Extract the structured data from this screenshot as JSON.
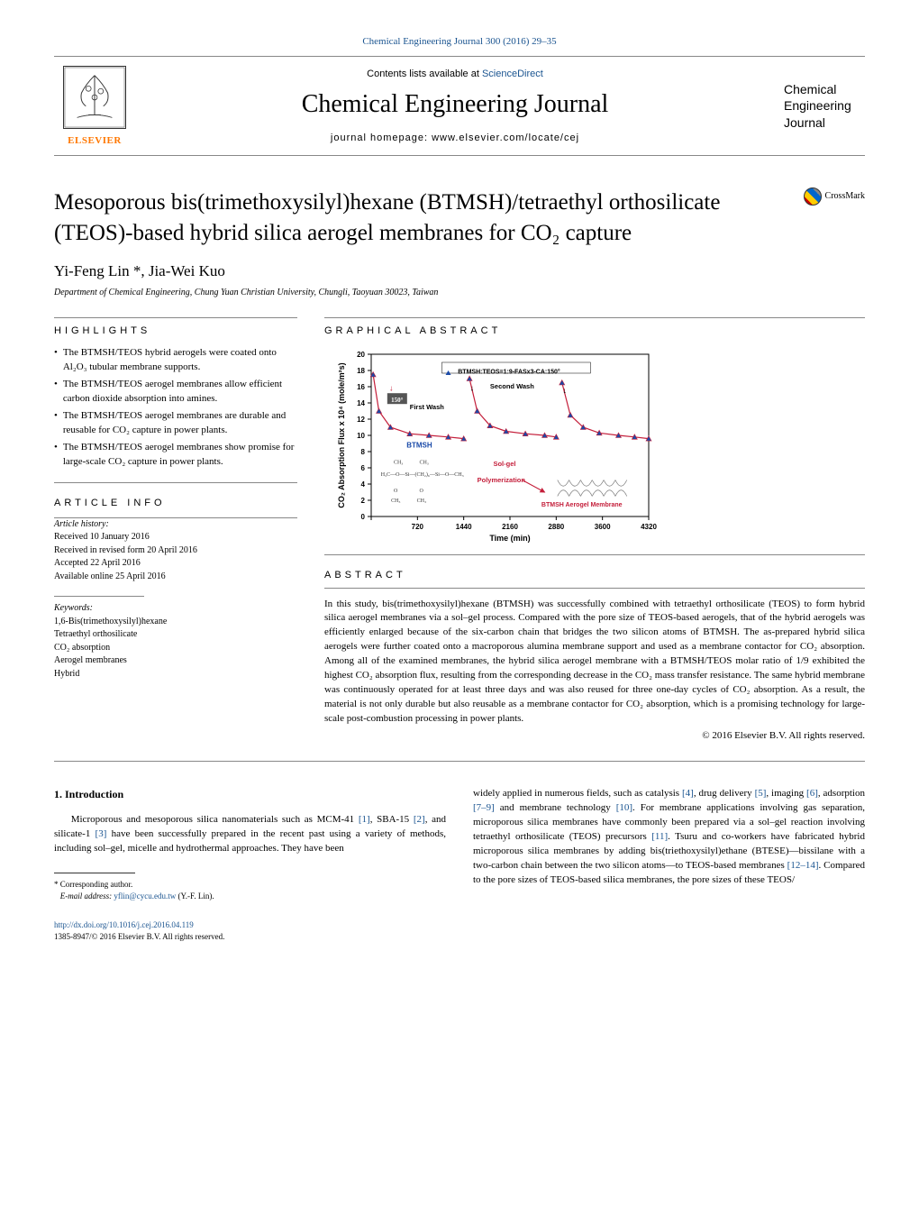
{
  "top_citation": "Chemical Engineering Journal 300 (2016) 29–35",
  "header": {
    "contents_text": "Contents lists available at ",
    "sciencedirect": "ScienceDirect",
    "journal_title": "Chemical Engineering Journal",
    "homepage_label": "journal homepage: ",
    "homepage_url": "www.elsevier.com/locate/cej",
    "elsevier": "ELSEVIER",
    "cover_text": "Chemical Engineering Journal"
  },
  "crossmark": "CrossMark",
  "title": "Mesoporous bis(trimethoxysilyl)hexane (BTMSH)/tetraethyl orthosilicate (TEOS)-based hybrid silica aerogel membranes for CO₂ capture",
  "authors": "Yi-Feng Lin *, Jia-Wei Kuo",
  "affiliation": "Department of Chemical Engineering, Chung Yuan Christian University, Chungli, Taoyuan 30023, Taiwan",
  "sections": {
    "highlights_label": "HIGHLIGHTS",
    "graphical_label": "GRAPHICAL ABSTRACT",
    "article_info_label": "ARTICLE INFO",
    "abstract_label": "ABSTRACT"
  },
  "highlights": [
    "The BTMSH/TEOS hybrid aerogels were coated onto Al₂O₃ tubular membrane supports.",
    "The BTMSH/TEOS aerogel membranes allow efficient carbon dioxide absorption into amines.",
    "The BTMSH/TEOS aerogel membranes are durable and reusable for CO₂ capture in power plants.",
    "The BTMSH/TEOS aerogel membranes show promise for large-scale CO₂ capture in power plants."
  ],
  "article_info": {
    "history_label": "Article history:",
    "received": "Received 10 January 2016",
    "revised": "Received in revised form 20 April 2016",
    "accepted": "Accepted 22 April 2016",
    "online": "Available online 25 April 2016",
    "keywords_label": "Keywords:",
    "keywords": [
      "1,6-Bis(trimethoxysilyl)hexane",
      "Tetraethyl orthosilicate",
      "CO₂ absorption",
      "Aerogel membranes",
      "Hybrid"
    ]
  },
  "abstract": "In this study, bis(trimethoxysilyl)hexane (BTMSH) was successfully combined with tetraethyl orthosilicate (TEOS) to form hybrid silica aerogel membranes via a sol–gel process. Compared with the pore size of TEOS-based aerogels, that of the hybrid aerogels was efficiently enlarged because of the six-carbon chain that bridges the two silicon atoms of BTMSH. The as-prepared hybrid silica aerogels were further coated onto a macroporous alumina membrane support and used as a membrane contactor for CO₂ absorption. Among all of the examined membranes, the hybrid silica aerogel membrane with a BTMSH/TEOS molar ratio of 1/9 exhibited the highest CO₂ absorption flux, resulting from the corresponding decrease in the CO₂ mass transfer resistance. The same hybrid membrane was continuously operated for at least three days and was also reused for three one-day cycles of CO₂ absorption. As a result, the material is not only durable but also reusable as a membrane contactor for CO₂ absorption, which is a promising technology for large-scale post-combustion processing in power plants.",
  "copyright": "© 2016 Elsevier B.V. All rights reserved.",
  "intro": {
    "heading": "1. Introduction",
    "para_left": "Microporous and mesoporous silica nanomaterials such as MCM-41 [1], SBA-15 [2], and silicate-1 [3] have been successfully prepared in the recent past using a variety of methods, including sol–gel, micelle and hydrothermal approaches. They have been",
    "para_right": "widely applied in numerous fields, such as catalysis [4], drug delivery [5], imaging [6], adsorption [7–9] and membrane technology [10]. For membrane applications involving gas separation, microporous silica membranes have commonly been prepared via a sol–gel reaction involving tetraethyl orthosilicate (TEOS) precursors [11]. Tsuru and co-workers have fabricated hybrid microporous silica membranes by adding bis(triethoxysilyl)ethane (BTESE)—bissilane with a two-carbon chain between the two silicon atoms—to TEOS-based membranes [12–14]. Compared to the pore sizes of TEOS-based silica membranes, the pore sizes of these TEOS/"
  },
  "footnote": {
    "corresponding": "* Corresponding author.",
    "email_label": "E-mail address: ",
    "email": "yflin@cycu.edu.tw",
    "email_name": " (Y.-F. Lin)."
  },
  "footer": {
    "doi": "http://dx.doi.org/10.1016/j.cej.2016.04.119",
    "issn": "1385-8947/© 2016 Elsevier B.V. All rights reserved."
  },
  "chart": {
    "type": "line-scatter",
    "y_label": "CO₂ Absorption Flux x 10⁴ (mole/m²s)",
    "x_label": "Time (min)",
    "xlim": [
      0,
      4320
    ],
    "ylim": [
      0,
      20
    ],
    "xticks": [
      0,
      720,
      1440,
      2160,
      2880,
      3600,
      4320
    ],
    "yticks": [
      0,
      2,
      4,
      6,
      8,
      10,
      12,
      14,
      16,
      18,
      20
    ],
    "legend": "BTMSH:TEOS=1:9-FASx3-CA:150°",
    "annotations": {
      "angle": "150°",
      "first_wash": "First Wash",
      "second_wash": "Second Wash",
      "btmsh": "BTMSH",
      "solgel": "Sol-gel",
      "polymerization": "Polymerization",
      "membrane": "BTMSH Aerogel Membrane"
    },
    "series_color": "#c41e3a",
    "marker_fill": "#1a4aa8",
    "text_colors": {
      "btmsh": "#1a4aa8",
      "solgel": "#c41e3a",
      "polymerization": "#c41e3a",
      "membrane": "#c41e3a"
    },
    "data": [
      {
        "x": 30,
        "y": 17.5
      },
      {
        "x": 120,
        "y": 13
      },
      {
        "x": 300,
        "y": 11
      },
      {
        "x": 600,
        "y": 10.2
      },
      {
        "x": 900,
        "y": 10
      },
      {
        "x": 1200,
        "y": 9.8
      },
      {
        "x": 1440,
        "y": 9.6
      },
      {
        "x": 1530,
        "y": 17
      },
      {
        "x": 1650,
        "y": 13
      },
      {
        "x": 1850,
        "y": 11.2
      },
      {
        "x": 2100,
        "y": 10.5
      },
      {
        "x": 2400,
        "y": 10.2
      },
      {
        "x": 2700,
        "y": 10
      },
      {
        "x": 2880,
        "y": 9.8
      },
      {
        "x": 2970,
        "y": 16.5
      },
      {
        "x": 3100,
        "y": 12.5
      },
      {
        "x": 3300,
        "y": 11
      },
      {
        "x": 3550,
        "y": 10.3
      },
      {
        "x": 3850,
        "y": 10
      },
      {
        "x": 4100,
        "y": 9.8
      },
      {
        "x": 4320,
        "y": 9.6
      }
    ],
    "background": "#ffffff",
    "axis_color": "#000000",
    "font_size_axis": 8,
    "font_size_label": 9
  }
}
